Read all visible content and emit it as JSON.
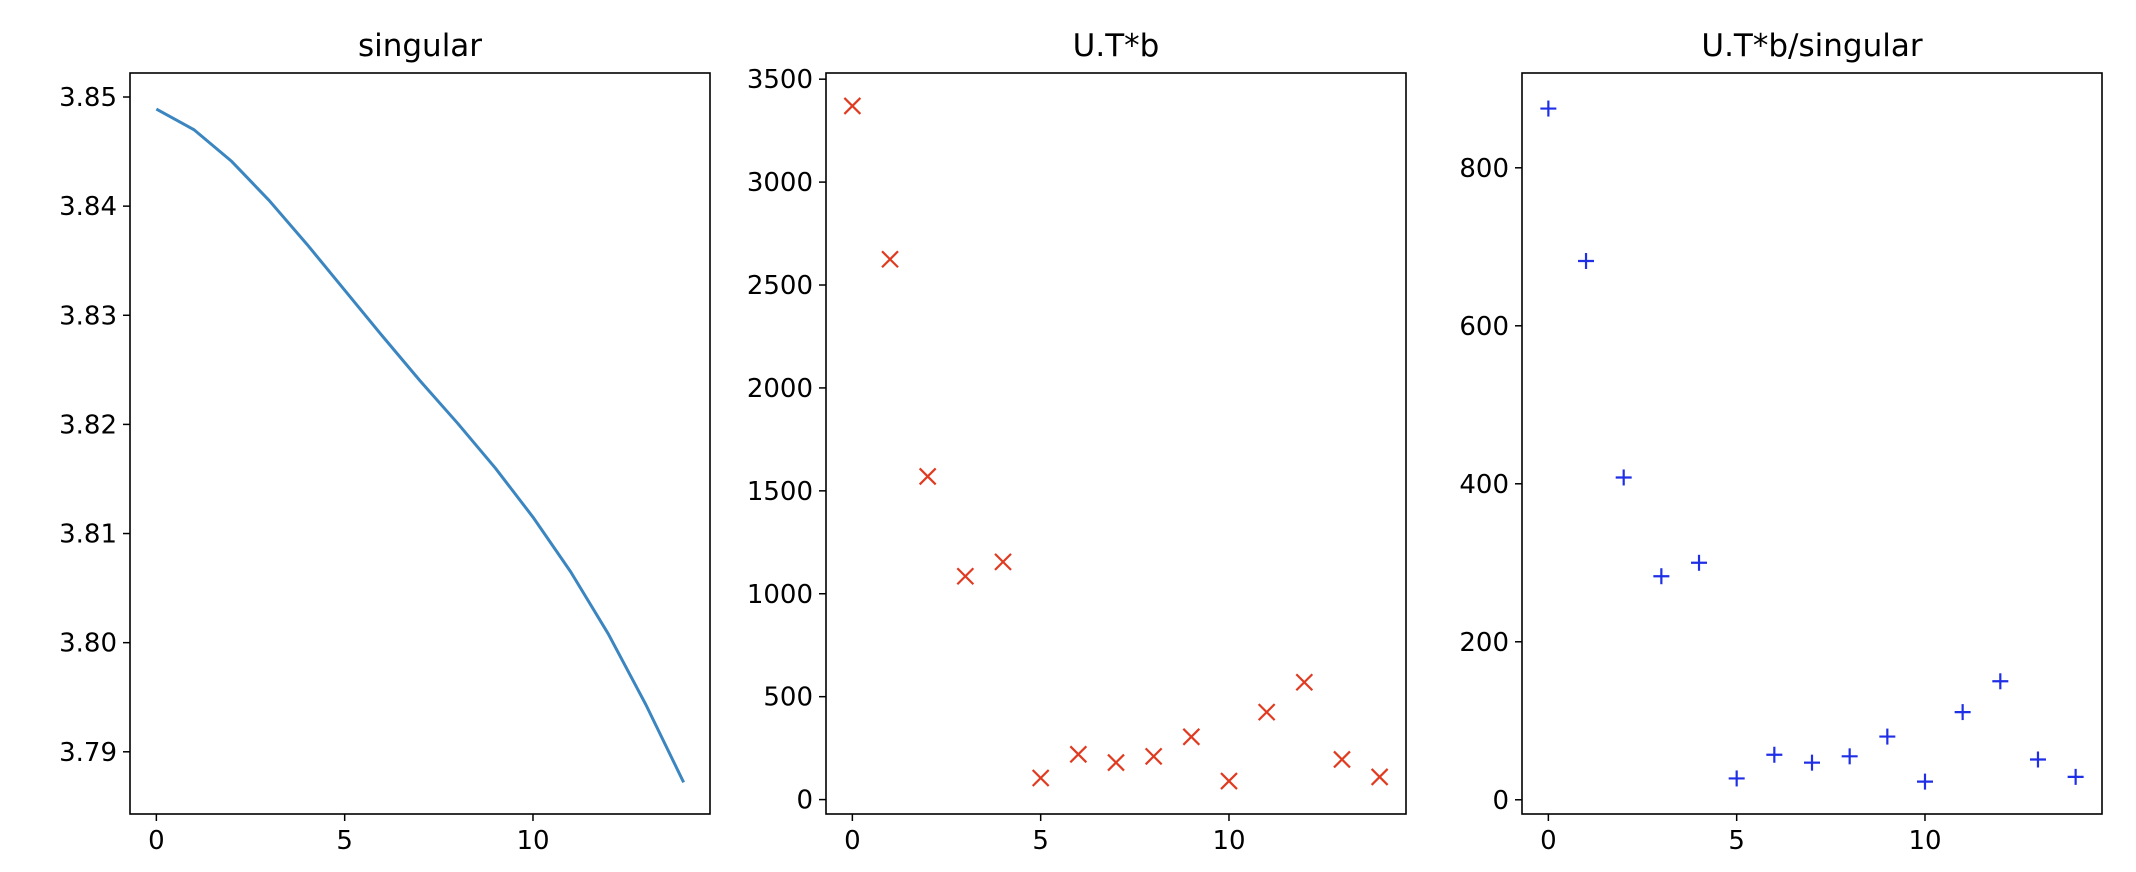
{
  "chart_data": [
    {
      "type": "line",
      "title": "singular",
      "xlabel": "",
      "ylabel": "",
      "x": [
        0,
        1,
        2,
        3,
        4,
        5,
        6,
        7,
        8,
        9,
        10,
        11,
        12,
        13,
        14
      ],
      "series": [
        {
          "values": [
            3.8489,
            3.847,
            3.8441,
            3.8405,
            3.8365,
            3.8323,
            3.8281,
            3.824,
            3.8201,
            3.816,
            3.8115,
            3.8065,
            3.8008,
            3.7943,
            3.7872
          ],
          "color": "#3b86c0"
        }
      ],
      "xlim": [
        -0.7,
        14.7
      ],
      "ylim": [
        3.7843,
        3.8522
      ],
      "xticks": [
        0,
        5,
        10
      ],
      "xtick_labels": [
        "0",
        "5",
        "10"
      ],
      "yticks": [
        3.79,
        3.8,
        3.81,
        3.82,
        3.83,
        3.84,
        3.85
      ],
      "ytick_labels": [
        "3.79",
        "3.80",
        "3.81",
        "3.82",
        "3.83",
        "3.84",
        "3.85"
      ],
      "grid": false
    },
    {
      "type": "scatter",
      "marker": "x",
      "title": "U.T*b",
      "xlabel": "",
      "ylabel": "",
      "x": [
        0,
        1,
        2,
        3,
        4,
        5,
        6,
        7,
        8,
        9,
        10,
        11,
        12,
        13,
        14
      ],
      "series": [
        {
          "values": [
            3370,
            2625,
            1570,
            1085,
            1155,
            105,
            220,
            180,
            210,
            305,
            90,
            425,
            570,
            195,
            110
          ],
          "color": "#e03a20"
        }
      ],
      "xlim": [
        -0.7,
        14.7
      ],
      "ylim": [
        -70,
        3530
      ],
      "xticks": [
        0,
        5,
        10
      ],
      "xtick_labels": [
        "0",
        "5",
        "10"
      ],
      "yticks": [
        0,
        500,
        1000,
        1500,
        2000,
        2500,
        3000,
        3500
      ],
      "ytick_labels": [
        "0",
        "500",
        "1000",
        "1500",
        "2000",
        "2500",
        "3000",
        "3500"
      ],
      "grid": false
    },
    {
      "type": "scatter",
      "marker": "+",
      "title": "U.T*b/singular",
      "xlabel": "",
      "ylabel": "",
      "x": [
        0,
        1,
        2,
        3,
        4,
        5,
        6,
        7,
        8,
        9,
        10,
        11,
        12,
        13,
        14
      ],
      "series": [
        {
          "values": [
            875,
            682,
            408,
            283,
            300,
            27,
            57,
            47,
            55,
            80,
            23,
            111,
            150,
            51,
            29
          ],
          "color": "#1f2fe6"
        }
      ],
      "xlim": [
        -0.7,
        14.7
      ],
      "ylim": [
        -18,
        920
      ],
      "xticks": [
        0,
        5,
        10
      ],
      "xtick_labels": [
        "0",
        "5",
        "10"
      ],
      "yticks": [
        0,
        200,
        400,
        600,
        800
      ],
      "ytick_labels": [
        "0",
        "200",
        "400",
        "600",
        "800"
      ],
      "grid": false
    }
  ]
}
